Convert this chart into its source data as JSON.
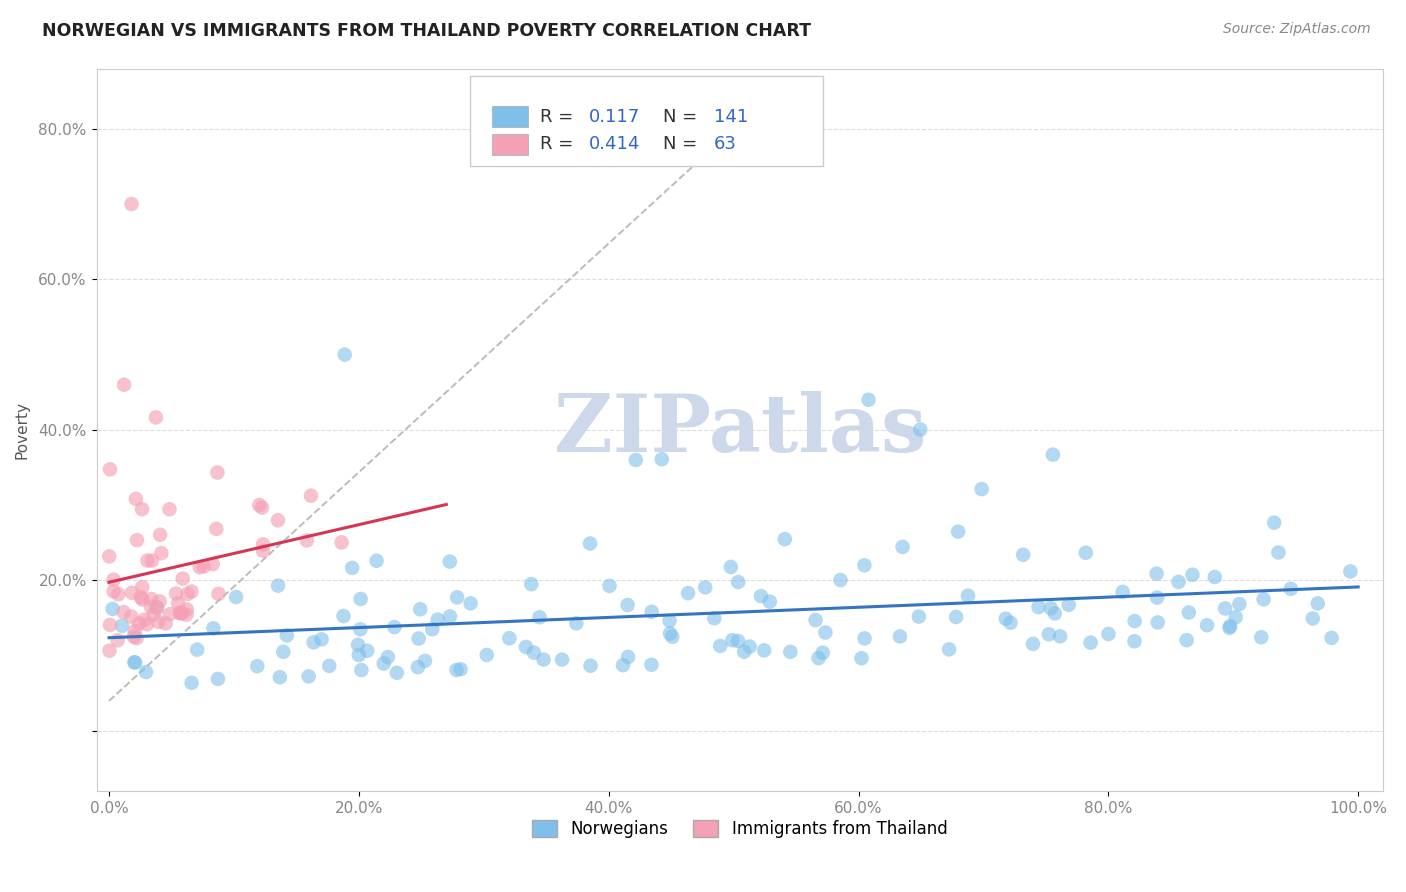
{
  "title": "NORWEGIAN VS IMMIGRANTS FROM THAILAND POVERTY CORRELATION CHART",
  "source": "Source: ZipAtlas.com",
  "ylabel": "Poverty",
  "watermark": "ZIPatlas",
  "legend_r_norwegian": "0.117",
  "legend_n_norwegian": "141",
  "legend_r_thai": "0.414",
  "legend_n_thai": "63",
  "norwegian_color": "#7fbfea",
  "thai_color": "#f4a0b5",
  "norwegian_line_color": "#3575c0",
  "thai_line_color": "#d63555",
  "dashed_line_color": "#bbbbbb",
  "background_color": "#ffffff",
  "grid_color": "#dddddd",
  "title_color": "#222222",
  "source_color": "#888888",
  "tick_color": "#888888",
  "label_color": "#555555",
  "legend_value_color": "#3366cc",
  "legend_label_color": "#333333",
  "watermark_color": "#cdd8ea",
  "x_ticks": [
    0.0,
    0.2,
    0.4,
    0.6,
    0.8,
    1.0
  ],
  "x_tick_labels": [
    "0.0%",
    "20.0%",
    "40.0%",
    "60.0%",
    "80.0%",
    "100.0%"
  ],
  "y_ticks": [
    0.0,
    0.2,
    0.4,
    0.6,
    0.8
  ],
  "y_tick_labels": [
    "",
    "20.0%",
    "40.0%",
    "60.0%",
    "80.0%"
  ],
  "xlim": [
    -0.01,
    1.02
  ],
  "ylim": [
    -0.08,
    0.88
  ],
  "title_fontsize": 12.5,
  "label_fontsize": 11,
  "tick_fontsize": 11,
  "legend_fontsize": 13,
  "source_fontsize": 10,
  "watermark_fontsize": 58
}
